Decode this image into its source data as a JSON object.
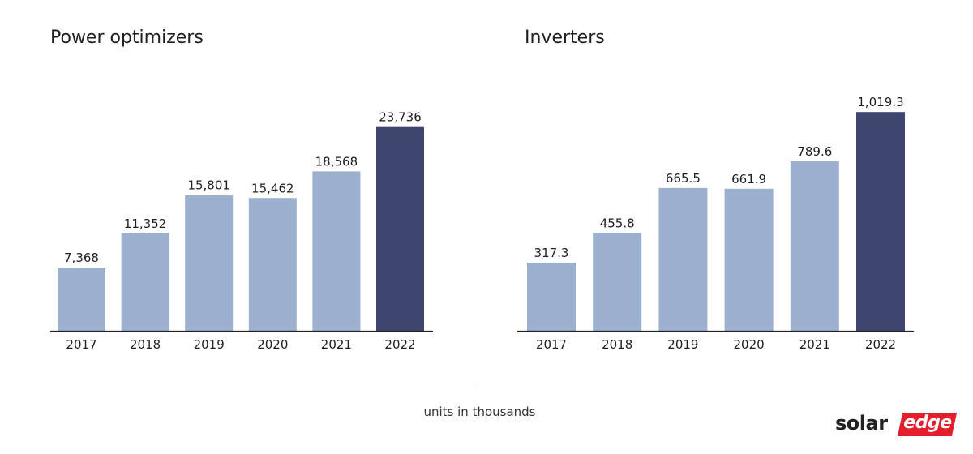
{
  "colors": {
    "bar_default": "#9cb0cf",
    "bar_highlight": "#3e466f",
    "axis": "#222222",
    "brand_red": "#e31e2d"
  },
  "footnote": "units in thousands",
  "logo": {
    "part1": "solar",
    "part2": "edge"
  },
  "chart_data": [
    {
      "type": "bar",
      "title": "Power optimizers",
      "categories": [
        "2017",
        "2018",
        "2019",
        "2020",
        "2021",
        "2022"
      ],
      "values": [
        7368,
        11352,
        15801,
        15462,
        18568,
        23736
      ],
      "value_labels": [
        "7,368",
        "11,352",
        "15,801",
        "15,462",
        "18,568",
        "23,736"
      ],
      "highlight_index": 5,
      "ylim": [
        0,
        25500
      ],
      "grid": false
    },
    {
      "type": "bar",
      "title": "Inverters",
      "categories": [
        "2017",
        "2018",
        "2019",
        "2020",
        "2021",
        "2022"
      ],
      "values": [
        317.3,
        455.8,
        665.5,
        661.9,
        789.6,
        1019.3
      ],
      "value_labels": [
        "317.3",
        "455.8",
        "665.5",
        "661.9",
        "789.6",
        "1,019.3"
      ],
      "highlight_index": 5,
      "ylim": [
        0,
        1020
      ],
      "grid": false
    }
  ]
}
